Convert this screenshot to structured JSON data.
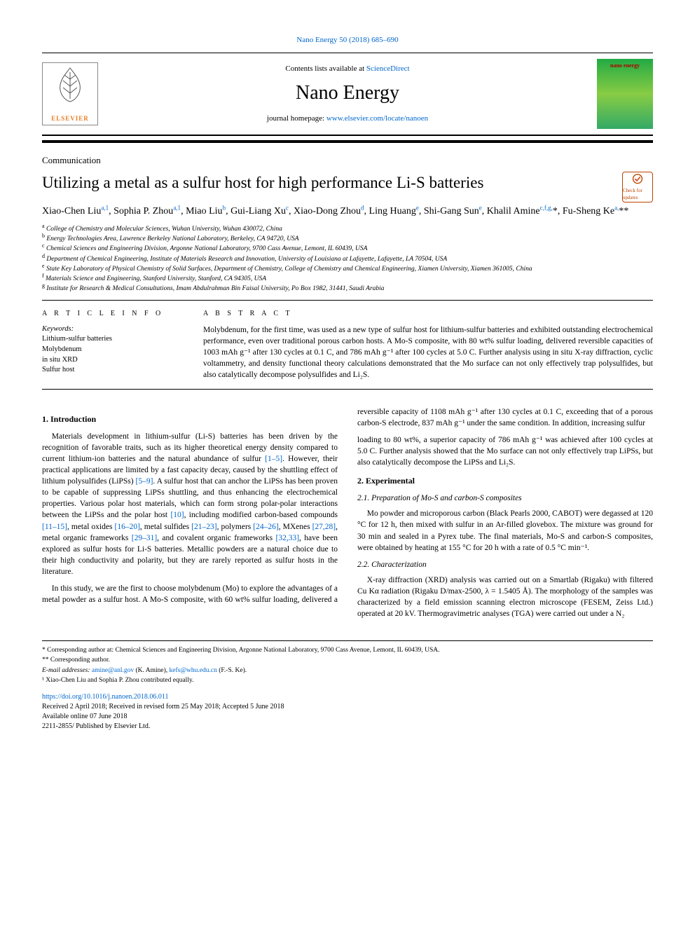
{
  "citation": "Nano Energy 50 (2018) 685–690",
  "masthead": {
    "contents_prefix": "Contents lists available at ",
    "contents_link": "ScienceDirect",
    "journal_name": "Nano Energy",
    "homepage_prefix": "journal homepage: ",
    "homepage_link": "www.elsevier.com/locate/nanoen",
    "publisher_label": "ELSEVIER",
    "cover_label": "nano energy"
  },
  "article_type": "Communication",
  "title": "Utilizing a metal as a sulfur host for high performance Li-S batteries",
  "check_updates": "Check for updates",
  "authors_html": "Xiao-Chen Liu<sup>a,1</sup>, Sophia P. Zhou<sup>a,1</sup>, Miao Liu<sup>b</sup>, Gui-Liang Xu<sup>c</sup>, Xiao-Dong Zhou<sup>d</sup>, Ling Huang<sup>e</sup>, Shi-Gang Sun<sup>e</sup>, Khalil Amine<sup>c,f,g,</sup>*, Fu-Sheng Ke<sup>a,</sup>**",
  "affiliations": [
    {
      "sup": "a",
      "text": "College of Chemistry and Molecular Sciences, Wuhan University, Wuhan 430072, China"
    },
    {
      "sup": "b",
      "text": "Energy Technologies Area, Lawrence Berkeley National Laboratory, Berkeley, CA 94720, USA"
    },
    {
      "sup": "c",
      "text": "Chemical Sciences and Engineering Division, Argonne National Laboratory, 9700 Cass Avenue, Lemont, IL 60439, USA"
    },
    {
      "sup": "d",
      "text": "Department of Chemical Engineering, Institute of Materials Research and Innovation, University of Louisiana at Lafayette, Lafayette, LA 70504, USA"
    },
    {
      "sup": "e",
      "text": "State Key Laboratory of Physical Chemistry of Solid Surfaces, Department of Chemistry, College of Chemistry and Chemical Engineering, Xiamen University, Xiamen 361005, China"
    },
    {
      "sup": "f",
      "text": "Materials Science and Engineering, Stanford University, Stanford, CA 94305, USA"
    },
    {
      "sup": "g",
      "text": "Institute for Research & Medical Consultations, Imam Abdulrahman Bin Faisal University, Po Box 1982, 31441, Saudi Arabia"
    }
  ],
  "article_info": {
    "heading": "A R T I C L E  I N F O",
    "kw_label": "Keywords:",
    "keywords": [
      "Lithium-sulfur batteries",
      "Molybdenum",
      "in situ XRD",
      "Sulfur host"
    ]
  },
  "abstract": {
    "heading": "A B S T R A C T",
    "text": "Molybdenum, for the first time, was used as a new type of sulfur host for lithium-sulfur batteries and exhibited outstanding electrochemical performance, even over traditional porous carbon hosts. A Mo-S composite, with 80 wt% sulfur loading, delivered reversible capacities of 1003 mAh g⁻¹ after 130 cycles at 0.1 C, and 786 mAh g⁻¹ after 100 cycles at 5.0 C. Further analysis using in situ X-ray diffraction, cyclic voltammetry, and density functional theory calculations demonstrated that the Mo surface can not only effectively trap polysulfides, but also catalytically decompose polysulfides and Li₂S."
  },
  "sections": {
    "intro_heading": "1. Introduction",
    "intro_p1": "Materials development in lithium-sulfur (Li-S) batteries has been driven by the recognition of favorable traits, such as its higher theoretical energy density compared to current lithium-ion batteries and the natural abundance of sulfur [1–5]. However, their practical applications are limited by a fast capacity decay, caused by the shuttling effect of lithium polysulfides (LiPSs) [5–9]. A sulfur host that can anchor the LiPSs has been proven to be capable of suppressing LiPSs shuttling, and thus enhancing the electrochemical properties. Various polar host materials, which can form strong polar-polar interactions between the LiPSs and the polar host [10], including modified carbon-based compounds [11–15], metal oxides [16–20], metal sulfides [21–23], polymers [24–26], MXenes [27,28], metal organic frameworks [29–31], and covalent organic frameworks [32,33], have been explored as sulfur hosts for Li-S batteries. Metallic powders are a natural choice due to their high conductivity and polarity, but they are rarely reported as sulfur hosts in the literature.",
    "intro_p2": "In this study, we are the first to choose molybdenum (Mo) to explore the advantages of a metal powder as a sulfur host. A Mo-S composite, with 60 wt% sulfur loading, delivered a reversible capacity of 1108 mAh g⁻¹ after 130 cycles at 0.1 C, exceeding that of a porous carbon-S electrode, 837 mAh g⁻¹ under the same condition. In addition, increasing sulfur",
    "intro_p2b": "loading to 80 wt%, a superior capacity of 786 mAh g⁻¹ was achieved after 100 cycles at 5.0 C. Further analysis showed that the Mo surface can not only effectively trap LiPSs, but also catalytically decompose the LiPSs and Li₂S.",
    "exp_heading": "2. Experimental",
    "exp_21_heading": "2.1. Preparation of Mo-S and carbon-S composites",
    "exp_21_text": "Mo powder and microporous carbon (Black Pearls 2000, CABOT) were degassed at 120 °C for 12 h, then mixed with sulfur in an Ar-filled glovebox. The mixture was ground for 30 min and sealed in a Pyrex tube. The final materials, Mo-S and carbon-S composites, were obtained by heating at 155 °C for 20 h with a rate of 0.5 °C min⁻¹.",
    "exp_22_heading": "2.2. Characterization",
    "exp_22_text": "X-ray diffraction (XRD) analysis was carried out on a Smartlab (Rigaku) with filtered Cu Kα radiation (Rigaku D/max-2500, λ = 1.5405 Å). The morphology of the samples was characterized by a field emission scanning electron microscope (FESEM, Zeiss Ltd.) operated at 20 kV. Thermogravimetric analyses (TGA) were carried out under a N₂"
  },
  "refs_linked": {
    "r1_5": "[1–5]",
    "r5_9": "[5–9]",
    "r10": "[10]",
    "r11_15": "[11–15]",
    "r16_20": "[16–20]",
    "r21_23": "[21–23]",
    "r24_26": "[24–26]",
    "r27_28": "[27,28]",
    "r29_31": "[29–31]",
    "r32_33": "[32,33]"
  },
  "footnotes": {
    "corr1": "* Corresponding author at: Chemical Sciences and Engineering Division, Argonne National Laboratory, 9700 Cass Avenue, Lemont, IL 60439, USA.",
    "corr2": "** Corresponding author.",
    "email_label": "E-mail addresses: ",
    "email1": "amine@anl.gov",
    "email1_name": " (K. Amine), ",
    "email2": "kefs@whu.edu.cn",
    "email2_name": " (F.-S. Ke).",
    "note1": "¹ Xiao-Chen Liu and Sophia P. Zhou contributed equally."
  },
  "doi": {
    "link": "https://doi.org/10.1016/j.nanoen.2018.06.011",
    "received": "Received 2 April 2018; Received in revised form 25 May 2018; Accepted 5 June 2018",
    "online": "Available online 07 June 2018",
    "copyright": "2211-2855/ Published by Elsevier Ltd."
  },
  "colors": {
    "link": "#0066cc",
    "rule": "#000000",
    "badge_border": "#b94a00"
  }
}
